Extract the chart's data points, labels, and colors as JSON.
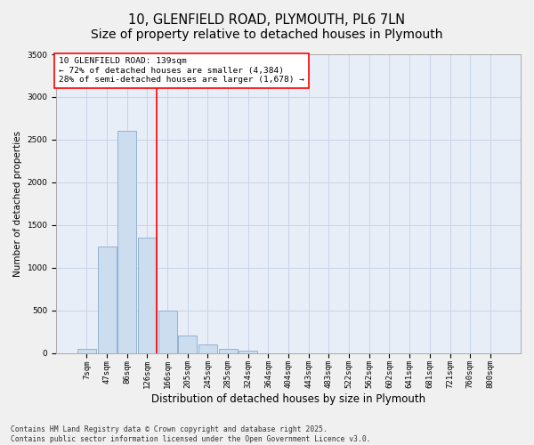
{
  "title_line1": "10, GLENFIELD ROAD, PLYMOUTH, PL6 7LN",
  "title_line2": "Size of property relative to detached houses in Plymouth",
  "xlabel": "Distribution of detached houses by size in Plymouth",
  "ylabel": "Number of detached properties",
  "categories": [
    "7sqm",
    "47sqm",
    "86sqm",
    "126sqm",
    "166sqm",
    "205sqm",
    "245sqm",
    "285sqm",
    "324sqm",
    "364sqm",
    "404sqm",
    "443sqm",
    "483sqm",
    "522sqm",
    "562sqm",
    "602sqm",
    "641sqm",
    "681sqm",
    "721sqm",
    "760sqm",
    "800sqm"
  ],
  "bar_values": [
    50,
    1250,
    2600,
    1350,
    500,
    200,
    100,
    50,
    30,
    0,
    0,
    0,
    0,
    0,
    0,
    0,
    0,
    0,
    0,
    0,
    0
  ],
  "bar_color": "#ccddf0",
  "bar_edge_color": "#88aacc",
  "ylim": [
    0,
    3500
  ],
  "yticks": [
    0,
    500,
    1000,
    1500,
    2000,
    2500,
    3000,
    3500
  ],
  "grid_color": "#c8d4e8",
  "background_color": "#e8eef8",
  "fig_background": "#f0f0f0",
  "vline_color": "red",
  "vline_x": 3.47,
  "annotation_text": "10 GLENFIELD ROAD: 139sqm\n← 72% of detached houses are smaller (4,384)\n28% of semi-detached houses are larger (1,678) →",
  "annotation_box_color": "#ffffff",
  "annotation_box_edge": "red",
  "footer_line1": "Contains HM Land Registry data © Crown copyright and database right 2025.",
  "footer_line2": "Contains public sector information licensed under the Open Government Licence v3.0.",
  "title_fontsize": 10.5,
  "xlabel_fontsize": 8.5,
  "ylabel_fontsize": 7.5,
  "tick_fontsize": 6.5,
  "annotation_fontsize": 6.8,
  "footer_fontsize": 5.8
}
